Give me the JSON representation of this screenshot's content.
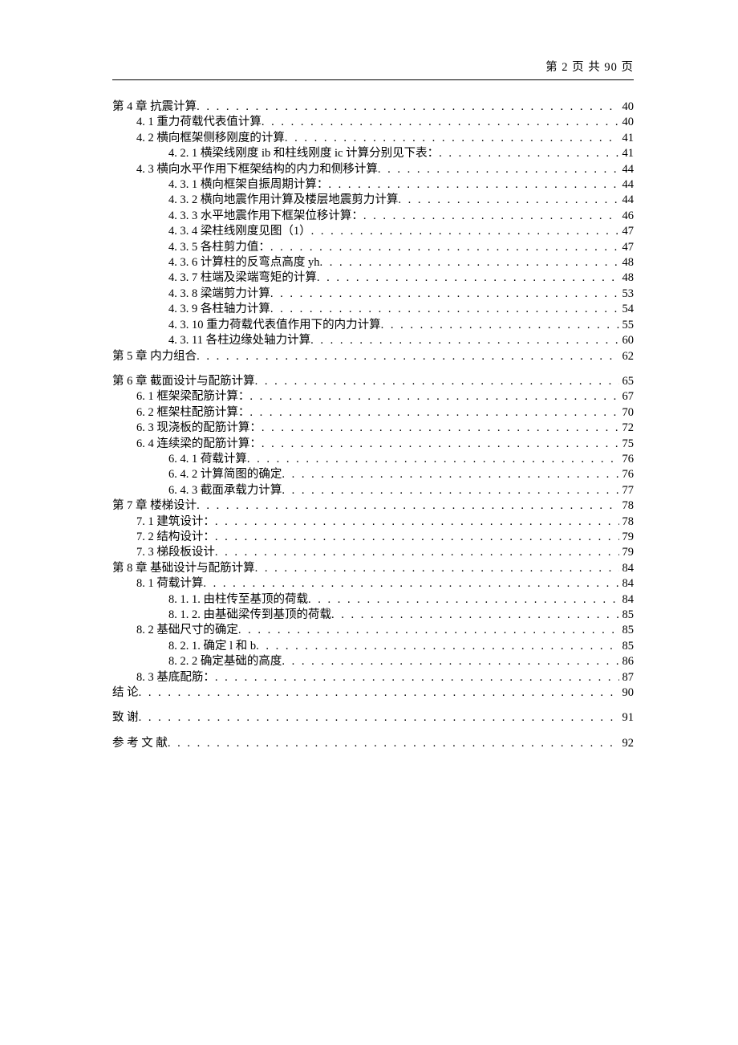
{
  "header": {
    "text": "第 2 页 共 90 页"
  },
  "dots": ". . . . . . . . . . . . . . . . . . . . . . . . . . . . . . . . . . . . . . . . . . . . . . . . . . . . . . . . . . . . . . . . . . . . . . . . . . . . . . . . . . . . . . . . . . . . . . .",
  "toc": [
    {
      "level": 1,
      "gap": true,
      "label": "第 4 章  抗震计算",
      "page": "40"
    },
    {
      "level": 2,
      "gap": false,
      "label": "4. 1  重力荷载代表值计算",
      "page": "40"
    },
    {
      "level": 2,
      "gap": false,
      "label": "4. 2  横向框架侧移刚度的计算",
      "page": "41"
    },
    {
      "level": 3,
      "gap": false,
      "label": "4. 2. 1 横梁线刚度 ib 和柱线刚度 ic 计算分别见下表：",
      "page": "41"
    },
    {
      "level": 2,
      "gap": false,
      "label": "4. 3 横向水平作用下框架结构的内力和侧移计算",
      "page": "44"
    },
    {
      "level": 3,
      "gap": false,
      "label": "4. 3. 1 横向框架自振周期计算：",
      "page": "44"
    },
    {
      "level": 3,
      "gap": false,
      "label": "4. 3. 2 横向地震作用计算及楼层地震剪力计算",
      "page": "44"
    },
    {
      "level": 3,
      "gap": false,
      "label": "4. 3. 3 水平地震作用下框架位移计算：",
      "page": "46"
    },
    {
      "level": 3,
      "gap": false,
      "label": "4. 3. 4 梁柱线刚度见图（1）",
      "page": "47"
    },
    {
      "level": 3,
      "gap": false,
      "label": "4. 3. 5 各柱剪力值：",
      "page": "47"
    },
    {
      "level": 3,
      "gap": false,
      "label": "4. 3. 6 计算柱的反弯点高度 yh",
      "page": "48"
    },
    {
      "level": 3,
      "gap": false,
      "label": "4. 3. 7 柱端及梁端弯矩的计算",
      "page": "48"
    },
    {
      "level": 3,
      "gap": false,
      "label": "4. 3. 8 梁端剪力计算",
      "page": "53"
    },
    {
      "level": 3,
      "gap": false,
      "label": "4. 3. 9 各柱轴力计算",
      "page": "54"
    },
    {
      "level": 3,
      "gap": false,
      "label": "4. 3. 10 重力荷载代表值作用下的内力计算",
      "page": "55"
    },
    {
      "level": 3,
      "gap": false,
      "label": "4. 3. 11 各柱边缘处轴力计算",
      "page": "60"
    },
    {
      "level": 1,
      "gap": false,
      "label": "第 5 章  内力组合",
      "page": "62"
    },
    {
      "level": 1,
      "gap": true,
      "label": "第 6 章  截面设计与配筋计算",
      "page": "65"
    },
    {
      "level": 2,
      "gap": false,
      "label": "6. 1 框架梁配筋计算：",
      "page": "67"
    },
    {
      "level": 2,
      "gap": false,
      "label": "6. 2 框架柱配筋计算：",
      "page": "70"
    },
    {
      "level": 2,
      "gap": false,
      "label": "6. 3 现浇板的配筋计算：",
      "page": "72"
    },
    {
      "level": 2,
      "gap": false,
      "label": "6. 4 连续梁的配筋计算：",
      "page": "75"
    },
    {
      "level": 3,
      "gap": false,
      "label": "6. 4. 1 荷载计算",
      "page": "76"
    },
    {
      "level": 3,
      "gap": false,
      "label": "6. 4. 2 计算简图的确定",
      "page": "76"
    },
    {
      "level": 3,
      "gap": false,
      "label": "6. 4. 3 截面承载力计算",
      "page": "77"
    },
    {
      "level": 1,
      "gap": false,
      "label": "第 7 章  楼梯设计",
      "page": "78"
    },
    {
      "level": 2,
      "gap": false,
      "label": "7. 1 建筑设计：",
      "page": "78"
    },
    {
      "level": 2,
      "gap": false,
      "label": "7. 2 结构设计：",
      "page": "79"
    },
    {
      "level": 2,
      "gap": false,
      "label": "7. 3 梯段板设计",
      "page": "79"
    },
    {
      "level": 1,
      "gap": false,
      "label": "第 8 章  基础设计与配筋计算",
      "page": "84"
    },
    {
      "level": 2,
      "gap": false,
      "label": "8. 1 荷载计算",
      "page": "84"
    },
    {
      "level": 3,
      "gap": false,
      "label": "8. 1. 1. 由柱传至基顶的荷载",
      "page": "84"
    },
    {
      "level": 3,
      "gap": false,
      "label": "8. 1. 2. 由基础梁传到基顶的荷载",
      "page": "85"
    },
    {
      "level": 2,
      "gap": false,
      "label": "8. 2 基础尺寸的确定",
      "page": "85"
    },
    {
      "level": 3,
      "gap": false,
      "label": "8. 2. 1. 确定 l 和 b",
      "page": "85"
    },
    {
      "level": 3,
      "gap": false,
      "label": "8. 2. 2 确定基础的高度",
      "page": "86"
    },
    {
      "level": 2,
      "gap": false,
      "label": "8. 3 基底配筋：",
      "page": "87"
    },
    {
      "level": 1,
      "gap": false,
      "label": "结  论",
      "page": "90"
    },
    {
      "level": 1,
      "gap": true,
      "label": "致  谢",
      "page": "91"
    },
    {
      "level": 1,
      "gap": true,
      "label": "参 考 文 献",
      "page": "92"
    }
  ]
}
